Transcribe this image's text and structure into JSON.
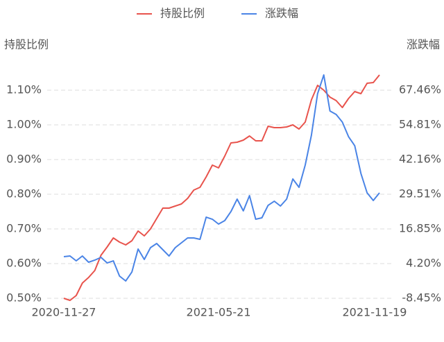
{
  "chart_data": {
    "type": "line",
    "y_label": "持股比例",
    "y2_label": "涨跌幅",
    "categories": [
      "2020-11-27",
      null,
      null,
      null,
      null,
      null,
      null,
      null,
      null,
      null,
      null,
      null,
      null,
      null,
      null,
      null,
      null,
      null,
      null,
      null,
      null,
      null,
      null,
      null,
      null,
      "2021-05-21",
      null,
      null,
      null,
      null,
      null,
      null,
      null,
      null,
      null,
      null,
      null,
      null,
      null,
      null,
      null,
      null,
      null,
      null,
      null,
      null,
      null,
      null,
      null,
      null,
      null,
      "2021-11-19"
    ],
    "series": [
      {
        "name": "持股比例",
        "color": "#e8534c",
        "axis": "y",
        "values": [
          0.5,
          0.494,
          0.508,
          0.544,
          0.56,
          0.58,
          0.624,
          0.648,
          0.674,
          0.662,
          0.654,
          0.666,
          0.694,
          0.68,
          0.7,
          0.73,
          0.76,
          0.76,
          0.766,
          0.772,
          0.788,
          0.812,
          0.82,
          0.85,
          0.884,
          0.876,
          0.91,
          0.948,
          0.95,
          0.956,
          0.968,
          0.954,
          0.954,
          0.996,
          0.992,
          0.992,
          0.994,
          1.0,
          0.988,
          1.008,
          1.072,
          1.114,
          1.1,
          1.08,
          1.07,
          1.05,
          1.076,
          1.096,
          1.09,
          1.12,
          1.122,
          1.144
        ]
      },
      {
        "name": "涨跌幅",
        "color": "#4a84e6",
        "axis": "y2",
        "values": [
          6.73,
          6.98,
          5.21,
          6.98,
          4.71,
          5.47,
          6.48,
          4.45,
          5.21,
          -0.35,
          -2.13,
          1.16,
          9.51,
          5.72,
          10.02,
          11.54,
          9.26,
          6.98,
          10.02,
          11.79,
          13.56,
          13.56,
          13.06,
          21.15,
          20.39,
          18.62,
          19.89,
          23.18,
          27.73,
          23.43,
          28.99,
          20.39,
          20.9,
          25.45,
          26.97,
          25.2,
          27.73,
          35.07,
          32.03,
          40.13,
          51.01,
          66.19,
          73.02,
          59.86,
          58.6,
          55.81,
          50.5,
          47.21,
          37.09,
          30.01,
          27.22,
          30.01
        ]
      }
    ],
    "ylim": [
      0.48,
      1.16
    ],
    "yticks": [
      {
        "value": 0.5,
        "label": "0.50%"
      },
      {
        "value": 0.6,
        "label": "0.60%"
      },
      {
        "value": 0.7,
        "label": "0.70%"
      },
      {
        "value": 0.8,
        "label": "0.80%"
      },
      {
        "value": 0.9,
        "label": "0.90%"
      },
      {
        "value": 1.0,
        "label": "1.00%"
      },
      {
        "value": 1.1,
        "label": "1.10%"
      }
    ],
    "y2lim": [
      -10.98,
      75.05
    ],
    "y2ticks": [
      {
        "value": -8.45,
        "label": "-8.45%"
      },
      {
        "value": 4.2,
        "label": "4.20%"
      },
      {
        "value": 16.85,
        "label": "16.85%"
      },
      {
        "value": 29.51,
        "label": "29.51%"
      },
      {
        "value": 42.16,
        "label": "42.16%"
      },
      {
        "value": 54.81,
        "label": "54.81%"
      },
      {
        "value": 67.46,
        "label": "67.46%"
      }
    ],
    "grid": true,
    "legend": "top"
  }
}
